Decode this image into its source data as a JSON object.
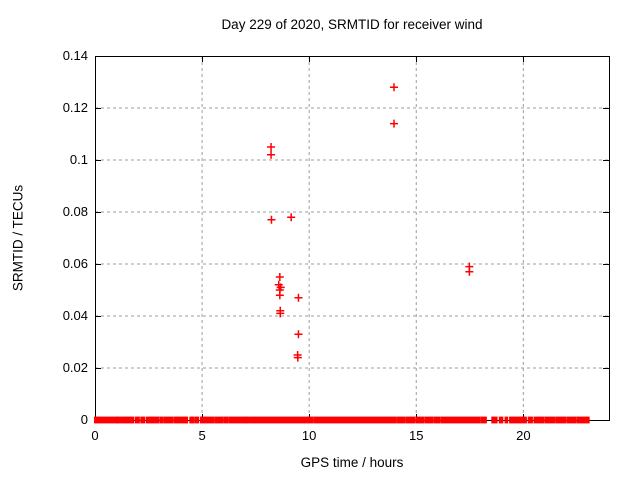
{
  "chart_data": {
    "type": "scatter",
    "title": "Day 229 of 2020, SRMTID for receiver wind",
    "xlabel": "GPS time / hours",
    "ylabel": "SRMTID / TECUs",
    "xlim": [
      0,
      24
    ],
    "ylim": [
      0,
      0.14
    ],
    "grid": true,
    "legend": "none",
    "marker_style": "plus",
    "colors": {
      "marker": "#ff0000",
      "grid": "#9e9e9e",
      "axis": "#000000",
      "background": "#ffffff",
      "text": "#000000"
    },
    "xticks": [
      {
        "value": 0,
        "label": "0"
      },
      {
        "value": 5,
        "label": "5"
      },
      {
        "value": 10,
        "label": "10"
      },
      {
        "value": 15,
        "label": "15"
      },
      {
        "value": 20,
        "label": "20"
      }
    ],
    "yticks": [
      {
        "value": 0,
        "label": "0"
      },
      {
        "value": 0.02,
        "label": "0.02"
      },
      {
        "value": 0.04,
        "label": "0.04"
      },
      {
        "value": 0.06,
        "label": "0.06"
      },
      {
        "value": 0.08,
        "label": "0.08"
      },
      {
        "value": 0.1,
        "label": "0.1"
      },
      {
        "value": 0.12,
        "label": "0.12"
      },
      {
        "value": 0.14,
        "label": "0.14"
      }
    ],
    "series": [
      {
        "name": "SRMTID",
        "points": [
          [
            8.22,
            0.105
          ],
          [
            8.22,
            0.102
          ],
          [
            8.24,
            0.077
          ],
          [
            9.16,
            0.078
          ],
          [
            13.96,
            0.128
          ],
          [
            13.96,
            0.114
          ],
          [
            17.48,
            0.059
          ],
          [
            17.48,
            0.057
          ],
          [
            8.63,
            0.055
          ],
          [
            8.58,
            0.052
          ],
          [
            8.67,
            0.051
          ],
          [
            8.63,
            0.05
          ],
          [
            8.63,
            0.048
          ],
          [
            9.5,
            0.047
          ],
          [
            8.65,
            0.042
          ],
          [
            8.65,
            0.041
          ],
          [
            9.5,
            0.033
          ],
          [
            9.46,
            0.025
          ],
          [
            9.47,
            0.024
          ]
        ]
      }
    ],
    "baseline_zero_segments": [
      [
        0.0,
        0.1
      ],
      [
        0.15,
        0.33
      ],
      [
        0.42,
        0.55
      ],
      [
        0.62,
        1.02
      ],
      [
        1.06,
        1.45
      ],
      [
        1.5,
        1.78
      ],
      [
        1.9,
        2.05
      ],
      [
        2.16,
        2.3
      ],
      [
        2.42,
        2.52
      ],
      [
        2.6,
        2.95
      ],
      [
        3.05,
        3.15
      ],
      [
        3.25,
        3.6
      ],
      [
        3.7,
        3.8
      ],
      [
        3.88,
        4.3
      ],
      [
        4.45,
        4.6
      ],
      [
        4.7,
        4.82
      ],
      [
        4.95,
        5.05
      ],
      [
        5.12,
        5.22
      ],
      [
        5.3,
        5.55
      ],
      [
        5.65,
        5.95
      ],
      [
        6.05,
        6.18
      ],
      [
        6.28,
        6.55
      ],
      [
        6.62,
        7.05
      ],
      [
        7.1,
        7.45
      ],
      [
        7.52,
        7.95
      ],
      [
        8.02,
        8.4
      ],
      [
        8.48,
        8.9
      ],
      [
        8.97,
        9.3
      ],
      [
        9.38,
        9.72
      ],
      [
        9.8,
        10.15
      ],
      [
        10.25,
        10.6
      ],
      [
        10.68,
        11.05
      ],
      [
        11.12,
        11.48
      ],
      [
        11.55,
        11.9
      ],
      [
        11.98,
        12.4
      ],
      [
        12.47,
        12.9
      ],
      [
        12.97,
        13.4
      ],
      [
        13.48,
        13.8
      ],
      [
        13.88,
        14.05
      ],
      [
        14.15,
        14.45
      ],
      [
        14.55,
        14.9
      ],
      [
        15.0,
        15.35
      ],
      [
        15.45,
        15.75
      ],
      [
        15.85,
        16.1
      ],
      [
        16.2,
        16.62
      ],
      [
        16.7,
        17.12
      ],
      [
        17.2,
        17.62
      ],
      [
        17.7,
        17.95
      ],
      [
        18.05,
        18.25
      ],
      [
        18.55,
        18.75
      ],
      [
        18.9,
        19.02
      ],
      [
        19.17,
        19.23
      ],
      [
        19.38,
        19.75
      ],
      [
        19.82,
        20.12
      ],
      [
        20.25,
        20.4
      ],
      [
        20.52,
        20.95
      ],
      [
        21.05,
        21.45
      ],
      [
        21.55,
        21.95
      ],
      [
        22.05,
        22.45
      ],
      [
        22.55,
        22.8
      ],
      [
        22.88,
        23.05
      ]
    ]
  }
}
